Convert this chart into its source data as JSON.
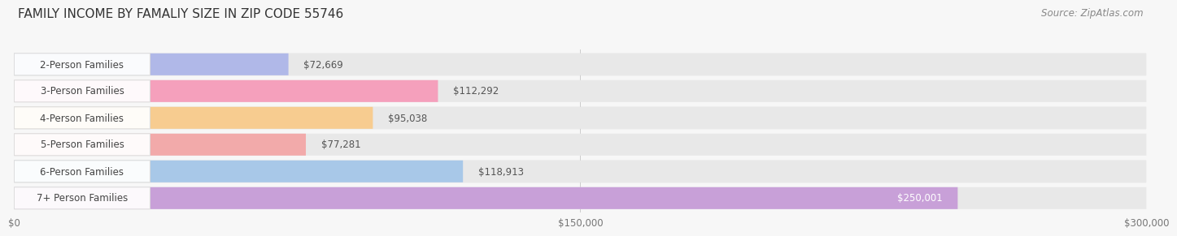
{
  "title": "FAMILY INCOME BY FAMALIY SIZE IN ZIP CODE 55746",
  "source": "Source: ZipAtlas.com",
  "categories": [
    "2-Person Families",
    "3-Person Families",
    "4-Person Families",
    "5-Person Families",
    "6-Person Families",
    "7+ Person Families"
  ],
  "values": [
    72669,
    112292,
    95038,
    77281,
    118913,
    250001
  ],
  "bar_colors": [
    "#b0b8e8",
    "#f5a0bc",
    "#f7cc90",
    "#f2aaaa",
    "#a8c8e8",
    "#c8a0d8"
  ],
  "label_colors": [
    "#555555",
    "#555555",
    "#555555",
    "#555555",
    "#555555",
    "#ffffff"
  ],
  "xlim": [
    0,
    300000
  ],
  "xtick_values": [
    0,
    150000,
    300000
  ],
  "xtick_labels": [
    "$0",
    "$150,000",
    "$300,000"
  ],
  "bg_color": "#f7f7f7",
  "bar_bg_color": "#e8e8e8",
  "row_bg_color": "#f0f0f0",
  "title_fontsize": 11,
  "source_fontsize": 8.5,
  "label_fontsize": 8.5,
  "category_fontsize": 8.5
}
